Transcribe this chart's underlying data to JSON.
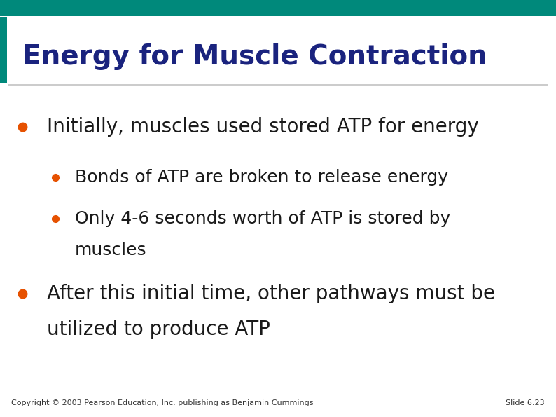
{
  "title": "Energy for Muscle Contraction",
  "title_color": "#1a237e",
  "title_fontsize": 28,
  "background_color": "#ffffff",
  "top_bar_color": "#00897b",
  "left_bar_color": "#00897b",
  "bullet_color": "#e65100",
  "text_color": "#1a1a1a",
  "bullet1": "Initially, muscles used stored ATP for energy",
  "sub_bullet1": "Bonds of ATP are broken to release energy",
  "sub_bullet2_line1": "Only 4-6 seconds worth of ATP is stored by",
  "sub_bullet2_line2": "muscles",
  "bullet2_line1": "After this initial time, other pathways must be",
  "bullet2_line2": "utilized to produce ATP",
  "footer_left": "Copyright © 2003 Pearson Education, Inc. publishing as Benjamin Cummings",
  "footer_right": "Slide 6.23",
  "footer_fontsize": 8,
  "main_fontsize": 20,
  "sub_fontsize": 18
}
